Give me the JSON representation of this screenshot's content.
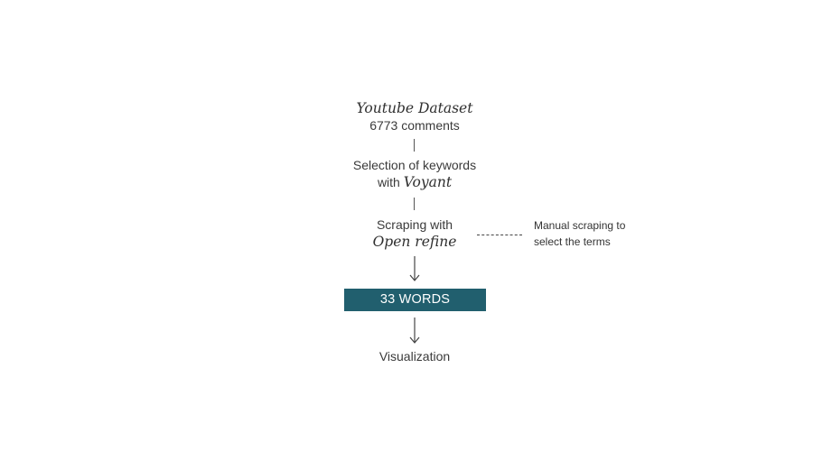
{
  "nodes": {
    "dataset": {
      "title": "Youtube Dataset",
      "detail": "6773 comments"
    },
    "keywords": {
      "line1": "Selection of keywords",
      "prefix": "with",
      "tool": "Voyant"
    },
    "scraping": {
      "line1": "Scraping with",
      "tool": "Open refine"
    },
    "words": {
      "label": "33 WORDS",
      "fill_color": "#215f6e"
    },
    "visualization": {
      "label": "Visualization"
    }
  },
  "side_note": {
    "line1": "Manual scraping to",
    "line2": "select the terms"
  }
}
